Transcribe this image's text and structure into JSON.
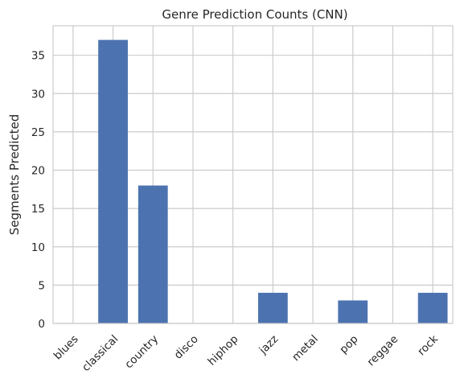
{
  "chart_data": {
    "type": "bar",
    "title": "Genre Prediction Counts (CNN)",
    "xlabel": "",
    "ylabel": "Segments Predicted",
    "categories": [
      "blues",
      "classical",
      "country",
      "disco",
      "hiphop",
      "jazz",
      "metal",
      "pop",
      "reggae",
      "rock"
    ],
    "values": [
      0,
      37,
      18,
      0,
      0,
      4,
      0,
      3,
      0,
      4
    ],
    "ylim": [
      0,
      38.85
    ],
    "yticks": [
      0,
      5,
      10,
      15,
      20,
      25,
      30,
      35
    ],
    "grid": true,
    "bar_color": "#4c72b0"
  }
}
